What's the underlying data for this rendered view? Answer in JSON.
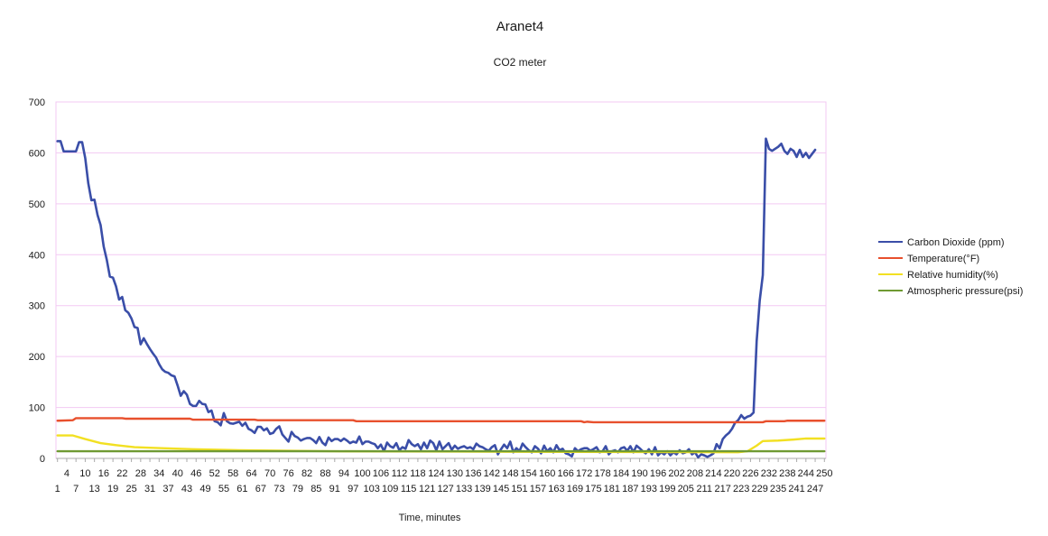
{
  "chart_data": {
    "type": "line",
    "title": "Aranet4",
    "subtitle": "CO2 meter",
    "xlabel": "Time, minutes",
    "ylabel": "",
    "ylim": [
      0,
      700
    ],
    "y_ticks": [
      0,
      100,
      200,
      300,
      400,
      500,
      600,
      700
    ],
    "x_range": [
      1,
      250
    ],
    "x_tick_step": 3,
    "grid": true,
    "legend_position": "right",
    "series": [
      {
        "name": "Carbon Dioxide (ppm)",
        "color": "#3a4ea8",
        "points": [
          [
            1,
            623
          ],
          [
            2,
            623
          ],
          [
            3,
            603
          ],
          [
            7,
            603
          ],
          [
            8,
            621
          ],
          [
            9,
            621
          ],
          [
            10,
            590
          ],
          [
            11,
            540
          ],
          [
            12,
            507
          ],
          [
            13,
            508
          ],
          [
            14,
            478
          ],
          [
            15,
            458
          ],
          [
            16,
            416
          ],
          [
            17,
            390
          ],
          [
            18,
            357
          ],
          [
            19,
            355
          ],
          [
            20,
            338
          ],
          [
            21,
            312
          ],
          [
            22,
            317
          ],
          [
            23,
            291
          ],
          [
            24,
            286
          ],
          [
            25,
            275
          ],
          [
            26,
            258
          ],
          [
            27,
            256
          ],
          [
            28,
            224
          ],
          [
            29,
            236
          ],
          [
            30,
            225
          ],
          [
            31,
            215
          ],
          [
            32,
            206
          ],
          [
            33,
            198
          ],
          [
            34,
            185
          ],
          [
            35,
            175
          ],
          [
            36,
            170
          ],
          [
            37,
            168
          ],
          [
            38,
            163
          ],
          [
            39,
            161
          ],
          [
            40,
            143
          ],
          [
            41,
            123
          ],
          [
            42,
            132
          ],
          [
            43,
            125
          ],
          [
            44,
            107
          ],
          [
            45,
            103
          ],
          [
            46,
            103
          ],
          [
            47,
            113
          ],
          [
            48,
            107
          ],
          [
            49,
            106
          ],
          [
            50,
            91
          ],
          [
            51,
            94
          ],
          [
            52,
            73
          ],
          [
            53,
            71
          ],
          [
            54,
            65
          ],
          [
            55,
            89
          ],
          [
            56,
            73
          ],
          [
            57,
            69
          ],
          [
            58,
            68
          ],
          [
            59,
            70
          ],
          [
            60,
            72
          ],
          [
            61,
            64
          ],
          [
            62,
            70
          ],
          [
            63,
            58
          ],
          [
            64,
            55
          ],
          [
            65,
            50
          ],
          [
            66,
            62
          ],
          [
            67,
            62
          ],
          [
            68,
            55
          ],
          [
            69,
            59
          ],
          [
            70,
            48
          ],
          [
            71,
            50
          ],
          [
            72,
            58
          ],
          [
            73,
            63
          ],
          [
            74,
            47
          ],
          [
            75,
            40
          ],
          [
            76,
            33
          ],
          [
            77,
            52
          ],
          [
            78,
            44
          ],
          [
            79,
            41
          ],
          [
            80,
            35
          ],
          [
            81,
            38
          ],
          [
            82,
            40
          ],
          [
            83,
            40
          ],
          [
            84,
            36
          ],
          [
            85,
            30
          ],
          [
            86,
            42
          ],
          [
            87,
            31
          ],
          [
            88,
            26
          ],
          [
            89,
            41
          ],
          [
            90,
            34
          ],
          [
            91,
            38
          ],
          [
            92,
            38
          ],
          [
            93,
            34
          ],
          [
            94,
            39
          ],
          [
            95,
            35
          ],
          [
            96,
            30
          ],
          [
            97,
            33
          ],
          [
            98,
            31
          ],
          [
            99,
            43
          ],
          [
            100,
            28
          ],
          [
            101,
            33
          ],
          [
            102,
            33
          ],
          [
            103,
            30
          ],
          [
            104,
            28
          ],
          [
            105,
            20
          ],
          [
            106,
            27
          ],
          [
            107,
            14
          ],
          [
            108,
            31
          ],
          [
            109,
            24
          ],
          [
            110,
            21
          ],
          [
            111,
            30
          ],
          [
            112,
            16
          ],
          [
            113,
            22
          ],
          [
            114,
            19
          ],
          [
            115,
            36
          ],
          [
            116,
            28
          ],
          [
            117,
            24
          ],
          [
            118,
            28
          ],
          [
            119,
            18
          ],
          [
            120,
            31
          ],
          [
            121,
            20
          ],
          [
            122,
            35
          ],
          [
            123,
            30
          ],
          [
            124,
            16
          ],
          [
            125,
            33
          ],
          [
            126,
            18
          ],
          [
            127,
            24
          ],
          [
            128,
            30
          ],
          [
            129,
            17
          ],
          [
            130,
            25
          ],
          [
            131,
            19
          ],
          [
            132,
            22
          ],
          [
            133,
            24
          ],
          [
            134,
            20
          ],
          [
            135,
            22
          ],
          [
            136,
            18
          ],
          [
            137,
            29
          ],
          [
            138,
            24
          ],
          [
            139,
            22
          ],
          [
            140,
            18
          ],
          [
            141,
            15
          ],
          [
            142,
            22
          ],
          [
            143,
            26
          ],
          [
            144,
            8
          ],
          [
            145,
            18
          ],
          [
            146,
            27
          ],
          [
            147,
            20
          ],
          [
            148,
            33
          ],
          [
            149,
            12
          ],
          [
            150,
            20
          ],
          [
            151,
            14
          ],
          [
            152,
            29
          ],
          [
            153,
            22
          ],
          [
            154,
            16
          ],
          [
            155,
            12
          ],
          [
            156,
            24
          ],
          [
            157,
            19
          ],
          [
            158,
            10
          ],
          [
            159,
            25
          ],
          [
            160,
            14
          ],
          [
            161,
            20
          ],
          [
            162,
            12
          ],
          [
            163,
            26
          ],
          [
            164,
            16
          ],
          [
            165,
            19
          ],
          [
            166,
            10
          ],
          [
            167,
            8
          ],
          [
            168,
            4
          ],
          [
            169,
            20
          ],
          [
            170,
            14
          ],
          [
            171,
            18
          ],
          [
            172,
            20
          ],
          [
            173,
            20
          ],
          [
            174,
            15
          ],
          [
            175,
            18
          ],
          [
            176,
            22
          ],
          [
            177,
            12
          ],
          [
            178,
            14
          ],
          [
            179,
            24
          ],
          [
            180,
            8
          ],
          [
            181,
            14
          ],
          [
            182,
            16
          ],
          [
            183,
            12
          ],
          [
            184,
            20
          ],
          [
            185,
            22
          ],
          [
            186,
            15
          ],
          [
            187,
            24
          ],
          [
            188,
            12
          ],
          [
            189,
            25
          ],
          [
            190,
            20
          ],
          [
            191,
            14
          ],
          [
            192,
            10
          ],
          [
            193,
            18
          ],
          [
            194,
            8
          ],
          [
            195,
            22
          ],
          [
            196,
            6
          ],
          [
            197,
            12
          ],
          [
            198,
            8
          ],
          [
            199,
            14
          ],
          [
            200,
            6
          ],
          [
            201,
            12
          ],
          [
            202,
            8
          ],
          [
            203,
            16
          ],
          [
            204,
            10
          ],
          [
            205,
            12
          ],
          [
            206,
            18
          ],
          [
            207,
            8
          ],
          [
            208,
            12
          ],
          [
            209,
            2
          ],
          [
            210,
            8
          ],
          [
            211,
            6
          ],
          [
            212,
            3
          ],
          [
            213,
            6
          ],
          [
            214,
            10
          ],
          [
            215,
            28
          ],
          [
            216,
            20
          ],
          [
            217,
            38
          ],
          [
            218,
            45
          ],
          [
            219,
            50
          ],
          [
            220,
            58
          ],
          [
            221,
            70
          ],
          [
            222,
            75
          ],
          [
            223,
            85
          ],
          [
            224,
            78
          ],
          [
            225,
            82
          ],
          [
            226,
            84
          ],
          [
            227,
            90
          ],
          [
            228,
            230
          ],
          [
            229,
            310
          ],
          [
            230,
            360
          ],
          [
            231,
            628
          ],
          [
            232,
            608
          ],
          [
            233,
            604
          ],
          [
            234,
            608
          ],
          [
            235,
            612
          ],
          [
            236,
            618
          ],
          [
            237,
            604
          ],
          [
            238,
            598
          ],
          [
            239,
            608
          ],
          [
            240,
            604
          ],
          [
            241,
            592
          ],
          [
            242,
            606
          ],
          [
            243,
            592
          ],
          [
            244,
            600
          ],
          [
            245,
            590
          ],
          [
            246,
            598
          ],
          [
            247,
            606
          ]
        ]
      },
      {
        "name": "Temperature(°F)",
        "color": "#e8502d",
        "points": [
          [
            1,
            74
          ],
          [
            6,
            75
          ],
          [
            7,
            79
          ],
          [
            22,
            79
          ],
          [
            23,
            78
          ],
          [
            44,
            78
          ],
          [
            45,
            76
          ],
          [
            65,
            76
          ],
          [
            66,
            75
          ],
          [
            97,
            75
          ],
          [
            98,
            73
          ],
          [
            171,
            73
          ],
          [
            172,
            71
          ],
          [
            173,
            72
          ],
          [
            175,
            71
          ],
          [
            230,
            71
          ],
          [
            231,
            73
          ],
          [
            237,
            73
          ],
          [
            238,
            74
          ],
          [
            250,
            74
          ]
        ]
      },
      {
        "name": "Relative humidity(%)",
        "color": "#f2e022",
        "points": [
          [
            1,
            45
          ],
          [
            6,
            45
          ],
          [
            10,
            38
          ],
          [
            15,
            30
          ],
          [
            20,
            26
          ],
          [
            26,
            22
          ],
          [
            35,
            20
          ],
          [
            45,
            18
          ],
          [
            60,
            16
          ],
          [
            90,
            14
          ],
          [
            150,
            13
          ],
          [
            222,
            12
          ],
          [
            225,
            14
          ],
          [
            228,
            25
          ],
          [
            230,
            34
          ],
          [
            235,
            35
          ],
          [
            240,
            37
          ],
          [
            244,
            39
          ],
          [
            250,
            39
          ]
        ]
      },
      {
        "name": "Atmospheric pressure(psi)",
        "color": "#6f9a33",
        "points": [
          [
            1,
            14
          ],
          [
            250,
            14
          ]
        ]
      }
    ]
  }
}
